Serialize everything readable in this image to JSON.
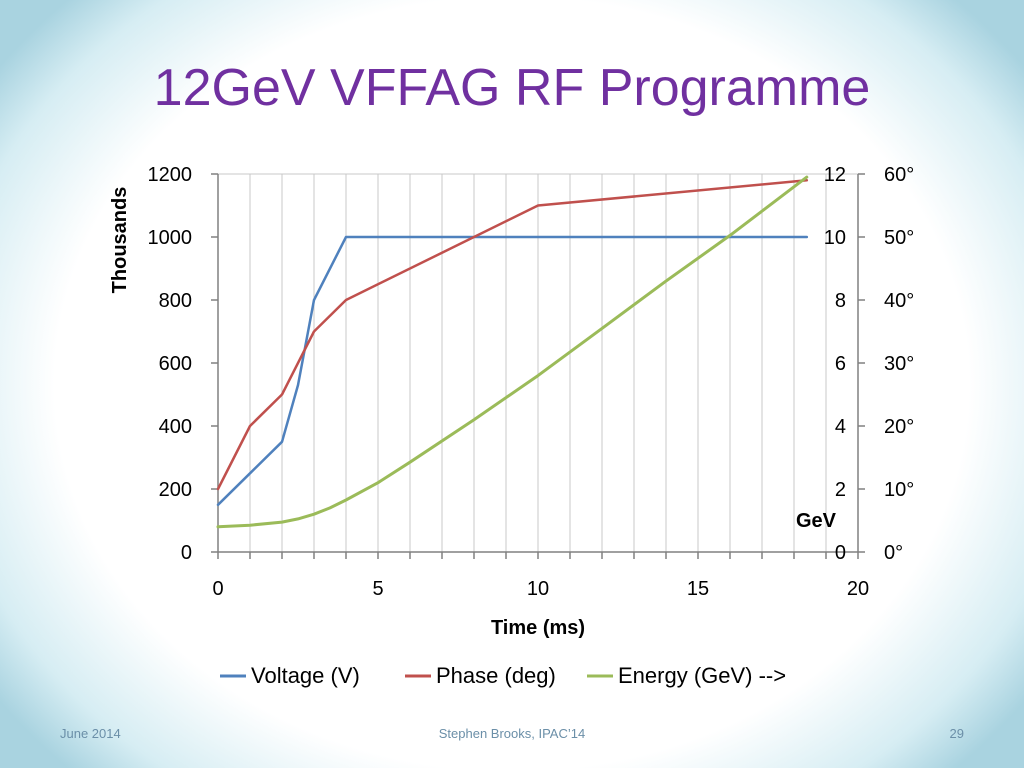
{
  "slide": {
    "title": "12GeV VFFAG RF Programme",
    "footer_left": "June 2014",
    "footer_center": "Stephen Brooks, IPAC’14",
    "page_number": "29"
  },
  "chart_data": {
    "type": "line",
    "xlabel": "Time (ms)",
    "ylabel": "Thousands",
    "y2_label": "GeV",
    "xlim": [
      0,
      20
    ],
    "x_ticks": [
      0,
      5,
      10,
      15,
      20
    ],
    "ylim": [
      0,
      1200
    ],
    "y_ticks": [
      0,
      200,
      400,
      600,
      800,
      1000,
      1200
    ],
    "y2_ticks": [
      0,
      2,
      4,
      6,
      8,
      10,
      12
    ],
    "y3_tick_labels": [
      "0°",
      "10°",
      "20°",
      "30°",
      "40°",
      "50°",
      "60°"
    ],
    "grid": "vertical",
    "legend_position": "bottom",
    "colors": {
      "voltage": "#4f81bd",
      "phase": "#c0504d",
      "energy": "#9bbb59"
    },
    "series": [
      {
        "name": "Voltage (V)",
        "axis": "left",
        "x": [
          0,
          1,
          2,
          2.5,
          3,
          4,
          18.4
        ],
        "values": [
          150,
          250,
          350,
          530,
          800,
          1000,
          1000
        ]
      },
      {
        "name": "Phase (deg)",
        "axis": "left",
        "x": [
          0,
          1,
          2,
          3,
          4,
          10,
          18.4
        ],
        "values": [
          200,
          400,
          500,
          700,
          800,
          1100,
          1180
        ]
      },
      {
        "name": "Energy (GeV) -->",
        "axis": "right",
        "x": [
          0,
          1,
          2,
          2.5,
          3,
          3.5,
          4,
          5,
          6,
          8,
          10,
          12,
          14,
          16,
          18.4
        ],
        "values": [
          0.8,
          0.85,
          0.95,
          1.05,
          1.2,
          1.4,
          1.65,
          2.2,
          2.85,
          4.2,
          5.6,
          7.1,
          8.6,
          10.05,
          11.9
        ]
      }
    ]
  }
}
